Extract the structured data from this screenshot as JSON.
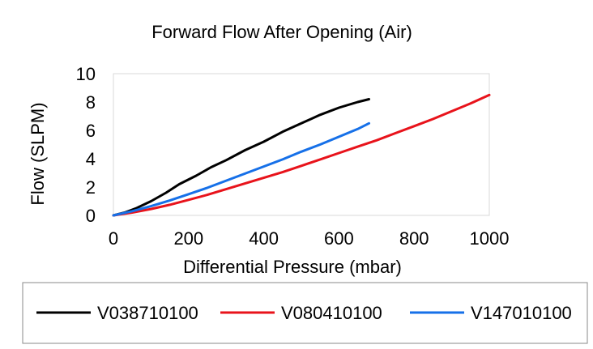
{
  "chart_data": {
    "type": "line",
    "title": "Forward Flow After Opening (Air)",
    "xlabel": "Differential Pressure (mbar)",
    "ylabel": "Flow (SLPM)",
    "xlim": [
      0,
      1000
    ],
    "ylim": [
      0,
      10
    ],
    "x_ticks": [
      "0",
      "200",
      "400",
      "600",
      "800",
      "1000"
    ],
    "y_ticks": [
      "0",
      "2",
      "4",
      "6",
      "8",
      "10"
    ],
    "grid": false,
    "legend_position": "bottom",
    "series": [
      {
        "name": "V038710100",
        "color": "#000000",
        "points": [
          [
            0,
            0
          ],
          [
            30,
            0.2
          ],
          [
            60,
            0.5
          ],
          [
            100,
            1.0
          ],
          [
            140,
            1.6
          ],
          [
            175,
            2.2
          ],
          [
            220,
            2.8
          ],
          [
            260,
            3.4
          ],
          [
            300,
            3.9
          ],
          [
            350,
            4.6
          ],
          [
            400,
            5.2
          ],
          [
            450,
            5.9
          ],
          [
            500,
            6.5
          ],
          [
            550,
            7.1
          ],
          [
            600,
            7.6
          ],
          [
            650,
            8.0
          ],
          [
            680,
            8.2
          ]
        ]
      },
      {
        "name": "V080410100",
        "color": "#e8131b",
        "points": [
          [
            0,
            0
          ],
          [
            50,
            0.2
          ],
          [
            100,
            0.45
          ],
          [
            150,
            0.75
          ],
          [
            200,
            1.1
          ],
          [
            250,
            1.45
          ],
          [
            300,
            1.85
          ],
          [
            350,
            2.25
          ],
          [
            400,
            2.65
          ],
          [
            450,
            3.05
          ],
          [
            500,
            3.5
          ],
          [
            550,
            3.95
          ],
          [
            600,
            4.4
          ],
          [
            650,
            4.85
          ],
          [
            700,
            5.3
          ],
          [
            750,
            5.8
          ],
          [
            800,
            6.3
          ],
          [
            850,
            6.8
          ],
          [
            900,
            7.35
          ],
          [
            950,
            7.9
          ],
          [
            1000,
            8.5
          ]
        ]
      },
      {
        "name": "V147010100",
        "color": "#1670e8",
        "points": [
          [
            0,
            0
          ],
          [
            50,
            0.3
          ],
          [
            100,
            0.65
          ],
          [
            150,
            1.05
          ],
          [
            200,
            1.5
          ],
          [
            250,
            1.95
          ],
          [
            300,
            2.45
          ],
          [
            350,
            2.95
          ],
          [
            400,
            3.45
          ],
          [
            450,
            3.95
          ],
          [
            500,
            4.5
          ],
          [
            550,
            5.0
          ],
          [
            600,
            5.55
          ],
          [
            650,
            6.1
          ],
          [
            680,
            6.5
          ]
        ]
      }
    ]
  }
}
